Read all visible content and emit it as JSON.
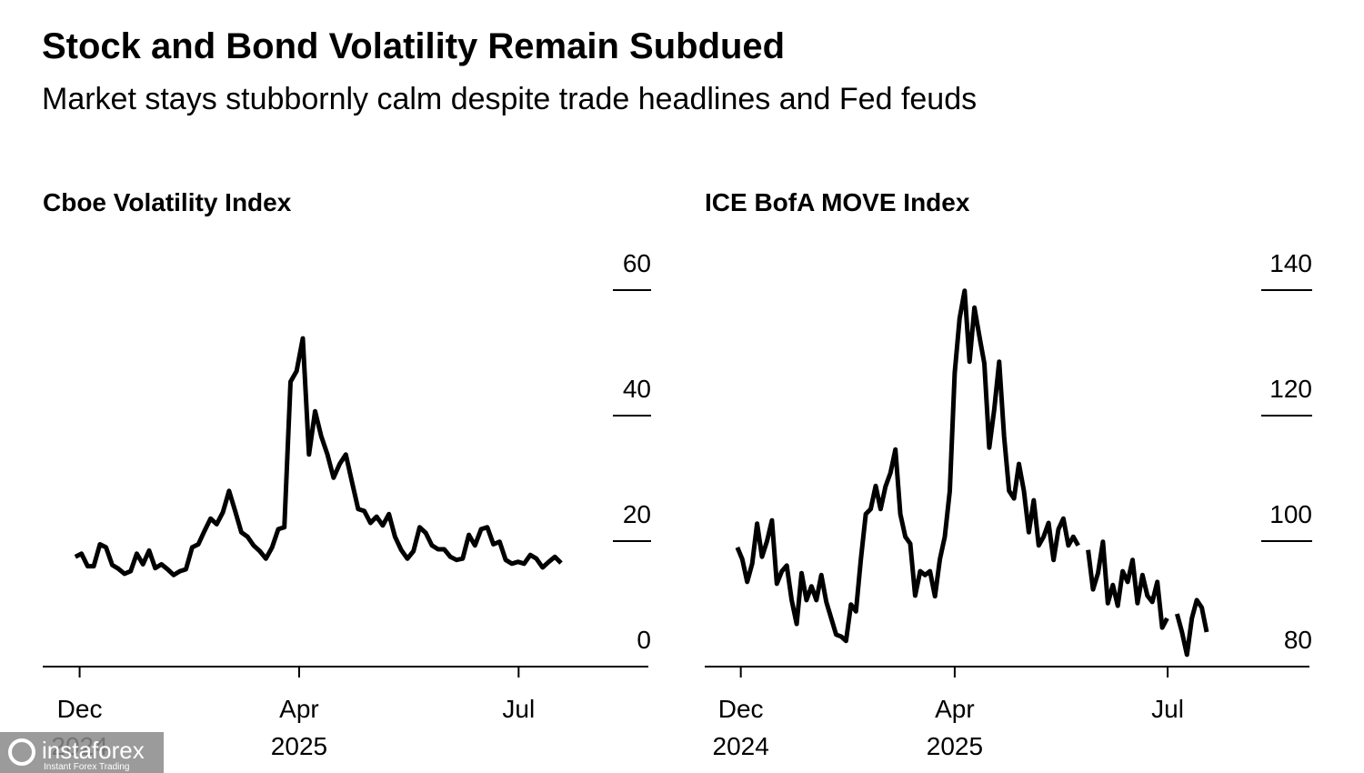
{
  "header": {
    "title": "Stock and Bond Volatility Remain Subdued",
    "subtitle": "Market stays stubbornly calm despite trade headlines and Fed feuds"
  },
  "chart_data": [
    {
      "type": "line",
      "title": "Cboe Volatility Index",
      "color": "#000000",
      "values": [
        17.5,
        18,
        16,
        16,
        19.5,
        19,
        16.2,
        15.6,
        14.8,
        15.2,
        18,
        16.3,
        18.5,
        15.7,
        16.3,
        15.5,
        14.6,
        15.2,
        15.5,
        19,
        19.5,
        21.6,
        23.6,
        22.7,
        24.6,
        28,
        24.8,
        21.4,
        20.7,
        19.3,
        18.4,
        17.2,
        19,
        21.9,
        22.2,
        45.4,
        47.1,
        52.3,
        33.8,
        40.7,
        36.7,
        33.8,
        30.1,
        32.3,
        33.8,
        29.4,
        25.1,
        24.8,
        22.9,
        23.9,
        22.5,
        24.3,
        20.7,
        18.6,
        17.2,
        18.4,
        22.2,
        21.3,
        19.3,
        18.7,
        18.7,
        17.5,
        17,
        17.2,
        21,
        19.3,
        21.9,
        22.2,
        19.5,
        19.9,
        17,
        16.4,
        16.7,
        16.4,
        17.8,
        17.2,
        15.8,
        16.7,
        17.5,
        16.5
      ],
      "xlim": [
        -5.3,
        93.2
      ],
      "xticks": [
        {
          "value": 0.7,
          "label": "Dec\n2024"
        },
        {
          "value": 36.4,
          "label": "Apr\n2025"
        },
        {
          "value": 72.1,
          "label": "Jul"
        }
      ],
      "ylim": [
        0,
        60
      ],
      "yticks": [
        0,
        20,
        40,
        60
      ]
    },
    {
      "type": "line",
      "title": "ICE BofA MOVE Index",
      "color": "#000000",
      "values": [
        99,
        97.1,
        93.5,
        96.4,
        102.8,
        97.5,
        100,
        103.3,
        93.2,
        95.2,
        96.1,
        90.6,
        86.8,
        94.9,
        90.6,
        92.8,
        90.6,
        94.6,
        90.3,
        87.7,
        85.1,
        84.8,
        84.1,
        89.9,
        88.8,
        97.1,
        104.3,
        105.1,
        108.8,
        105.1,
        108.7,
        110.9,
        114.6,
        104.3,
        100.7,
        99.6,
        91.3,
        95.2,
        94.6,
        95.2,
        91.2,
        97.1,
        100.7,
        108,
        126.8,
        135.5,
        139.9,
        128.6,
        137.2,
        132.6,
        128.3,
        114.9,
        121,
        128.6,
        116.7,
        108,
        106.8,
        112.3,
        108,
        101.4,
        106.5,
        99.3,
        100.7,
        102.9,
        97,
        101.9,
        103.6,
        99.3,
        100.7,
        99.3,
        null,
        98.6,
        92.3,
        94.9,
        99.9,
        90.1,
        93,
        89.7,
        95.2,
        93.5,
        97,
        90.1,
        94.6,
        91.3,
        90.3,
        93.5,
        86.2,
        87.7,
        null,
        88.4,
        85.5,
        81.9,
        87.7,
        90.6,
        89.4,
        85.5
      ],
      "xlim": [
        -6.6,
        115.8
      ],
      "xticks": [
        {
          "value": 0.7,
          "label": "Dec\n2024"
        },
        {
          "value": 44,
          "label": "Apr\n2025"
        },
        {
          "value": 87.1,
          "label": "Jul"
        }
      ],
      "ylim": [
        80,
        140
      ],
      "yticks": [
        80,
        100,
        120,
        140
      ]
    }
  ],
  "watermark": {
    "brand": "instaforex",
    "tagline": "Instant Forex Trading"
  }
}
